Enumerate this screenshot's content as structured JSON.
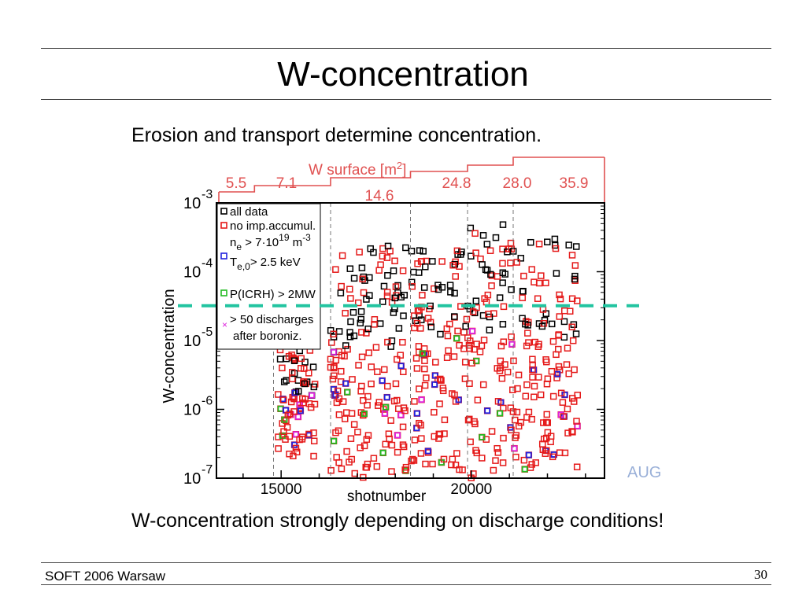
{
  "slide": {
    "title": "W-concentration",
    "subtitle": "Erosion and transport determine concentration.",
    "caption": "W-concentration strongly depending on discharge conditions!",
    "footer": "SOFT 2006 Warsaw",
    "page_number": "30",
    "watermark": "AUG"
  },
  "chart_data": {
    "type": "scatter",
    "ylabel": "W-concentration",
    "xlabel": "shotnumber",
    "y_scale": "log",
    "ylim": [
      1e-07,
      0.001
    ],
    "xlim": [
      13300,
      23500
    ],
    "x_ticks": [
      {
        "value": 15000,
        "label": "15000"
      },
      {
        "value": 20000,
        "label": "20000"
      }
    ],
    "y_ticks": [
      {
        "value": 1e-07,
        "base": "10",
        "exp": "-7"
      },
      {
        "value": 1e-06,
        "base": "10",
        "exp": "-6"
      },
      {
        "value": 1e-05,
        "base": "10",
        "exp": "-5"
      },
      {
        "value": 0.0001,
        "base": "10",
        "exp": "-4"
      },
      {
        "value": 0.001,
        "base": "10",
        "exp": "-3"
      }
    ],
    "w_surface_label": "W surface  [m",
    "w_surface_unit_exp": "2",
    "w_surface_label_close": "]",
    "surface_periods": [
      {
        "x_start": 13300,
        "x_end": 14300,
        "value": "5.5"
      },
      {
        "x_start": 14300,
        "x_end": 16300,
        "value": "7.1"
      },
      {
        "x_start": 16300,
        "x_end": 18400,
        "value": "14.6"
      },
      {
        "x_start": 18400,
        "x_end": 19900,
        "value": "24.8"
      },
      {
        "x_start": 19900,
        "x_end": 21100,
        "value": "28.0"
      },
      {
        "x_start": 21100,
        "x_end": 23500,
        "value": "35.9"
      }
    ],
    "period_boundaries": [
      14800,
      16300,
      18400,
      19900,
      21100
    ],
    "reference_line_y": 3.2e-05,
    "reference_line_color": "#22c4a0",
    "legend": [
      {
        "label": "all data",
        "color": "#000000",
        "marker": "square"
      },
      {
        "label": "no imp.accumul.",
        "color": "#e51a1a",
        "marker": "square"
      },
      {
        "label": "n",
        "sub": "e",
        "rest": " > 7·10",
        "sup": "19",
        "unit": " m",
        "unit_sup": "-3",
        "color": "#2222dd",
        "marker": "square"
      },
      {
        "label": "T",
        "sub": "e,0",
        "rest": "> 2.5 keV",
        "color": "#2222dd",
        "marker": "none"
      },
      {
        "label": "P(ICRH) > 2MW",
        "color": "#22bb22",
        "marker": "square"
      },
      {
        "label": "> 50 discharges",
        "line2": "after boroniz.",
        "color": "#dd22dd",
        "marker": "cross"
      }
    ],
    "clusters": [
      {
        "x_start": 14900,
        "x_end": 15900,
        "y_low": 2e-07,
        "y_high": 8e-06
      },
      {
        "x_start": 16300,
        "x_end": 17200,
        "y_low": 1e-07,
        "y_high": 0.0002
      },
      {
        "x_start": 17100,
        "x_end": 18300,
        "y_low": 1.2e-07,
        "y_high": 0.00025
      },
      {
        "x_start": 18400,
        "x_end": 19900,
        "y_low": 1.3e-07,
        "y_high": 0.00022
      },
      {
        "x_start": 19900,
        "x_end": 21100,
        "y_low": 1e-07,
        "y_high": 0.0006
      },
      {
        "x_start": 21100,
        "x_end": 22800,
        "y_low": 1.3e-07,
        "y_high": 0.0003
      }
    ],
    "series_colors": {
      "all": "#000000",
      "no_accum": "#e51a1a",
      "ne_te": "#2222dd",
      "icrh": "#22bb22",
      "boron": "#dd22dd"
    }
  }
}
